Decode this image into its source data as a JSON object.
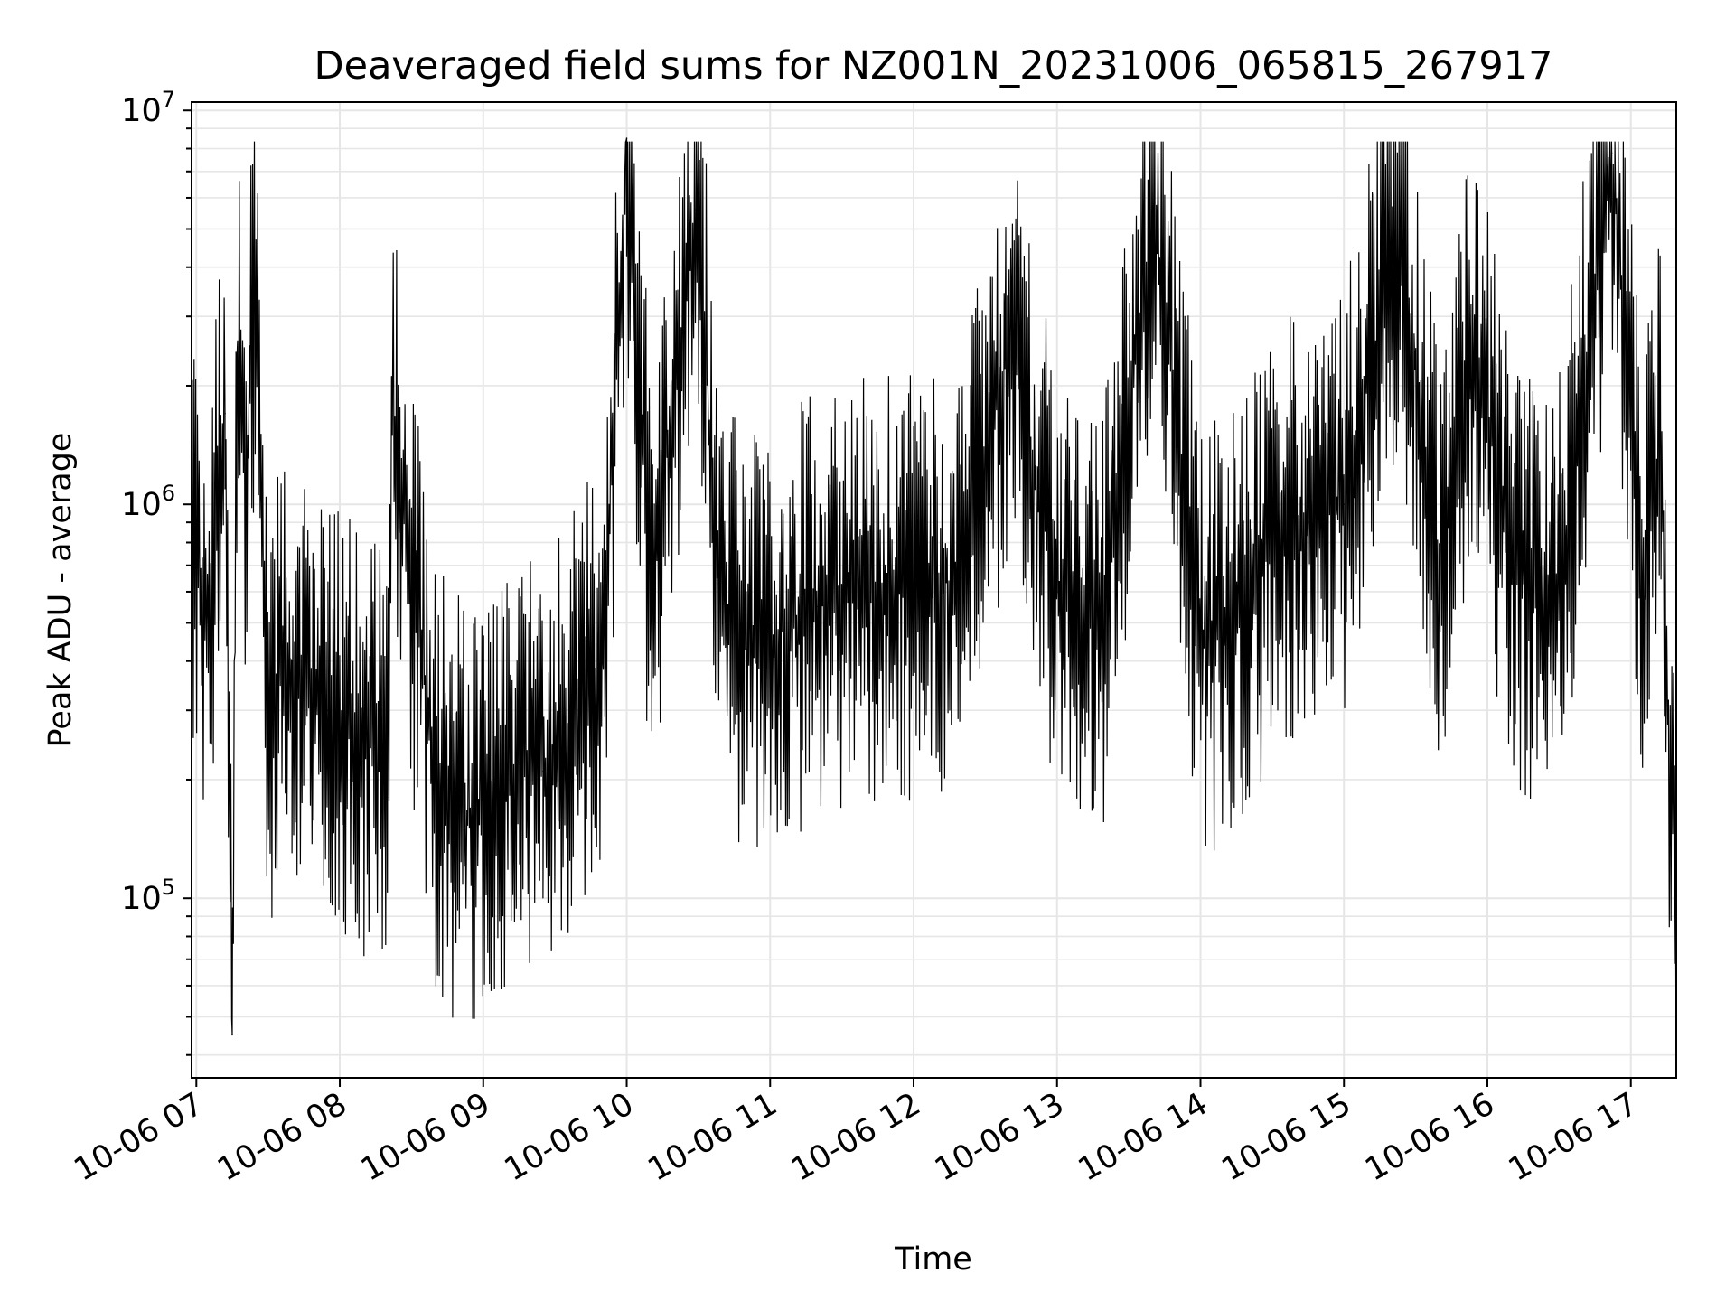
{
  "chart_data": {
    "type": "line",
    "title": "Deaveraged field sums for NZ001N_20231006_065815_267917",
    "xlabel": "Time",
    "ylabel": "Peak ADU - average",
    "yscale": "log",
    "ylim": [
      35000,
      10500000
    ],
    "xlim": [
      "2023-10-06 06:58",
      "2023-10-06 17:19"
    ],
    "x_ticks": [
      "10-06 07",
      "10-06 08",
      "10-06 09",
      "10-06 10",
      "10-06 11",
      "10-06 12",
      "10-06 13",
      "10-06 14",
      "10-06 15",
      "10-06 16",
      "10-06 17"
    ],
    "y_ticks": [
      {
        "value": 100000,
        "base": "10",
        "exp": "5"
      },
      {
        "value": 1000000,
        "base": "10",
        "exp": "6"
      },
      {
        "value": 10000000,
        "base": "10",
        "exp": "7"
      }
    ],
    "grid": true,
    "line_color": "#000000",
    "grid_color": "#e6e6e6",
    "series": [
      {
        "x": [
          "2023-10-06 06:58",
          "2023-10-06 07:05",
          "2023-10-06 07:12",
          "2023-10-06 07:15",
          "2023-10-06 07:17",
          "2023-10-06 07:21",
          "2023-10-06 07:24",
          "2023-10-06 07:30",
          "2023-10-06 07:40",
          "2023-10-06 07:55",
          "2023-10-06 08:10",
          "2023-10-06 08:20",
          "2023-10-06 08:22",
          "2023-10-06 08:40",
          "2023-10-06 08:55",
          "2023-10-06 09:10",
          "2023-10-06 09:25",
          "2023-10-06 09:40",
          "2023-10-06 09:50",
          "2023-10-06 09:58",
          "2023-10-06 10:00",
          "2023-10-06 10:10",
          "2023-10-06 10:29",
          "2023-10-06 10:40",
          "2023-10-06 11:00",
          "2023-10-06 11:20",
          "2023-10-06 11:40",
          "2023-10-06 12:00",
          "2023-10-06 12:20",
          "2023-10-06 12:41",
          "2023-10-06 13:00",
          "2023-10-06 13:20",
          "2023-10-06 13:40",
          "2023-10-06 14:00",
          "2023-10-06 14:15",
          "2023-10-06 14:30",
          "2023-10-06 14:45",
          "2023-10-06 15:00",
          "2023-10-06 15:23",
          "2023-10-06 15:40",
          "2023-10-06 15:55",
          "2023-10-06 16:10",
          "2023-10-06 16:30",
          "2023-10-06 16:52",
          "2023-10-06 17:05",
          "2023-10-06 17:12",
          "2023-10-06 17:19"
        ],
        "values": [
          900000,
          500000,
          1700000,
          45000,
          2400000,
          1200000,
          3400000,
          300000,
          400000,
          300000,
          250000,
          260000,
          1800000,
          200000,
          150000,
          200000,
          210000,
          300000,
          400000,
          4100000,
          8500000,
          600000,
          5600000,
          500000,
          450000,
          550000,
          600000,
          600000,
          650000,
          2700000,
          600000,
          550000,
          5600000,
          450000,
          500000,
          800000,
          900000,
          1000000,
          5000000,
          700000,
          2700000,
          650000,
          600000,
          7800000,
          600000,
          1500000,
          80000
        ]
      }
    ]
  }
}
